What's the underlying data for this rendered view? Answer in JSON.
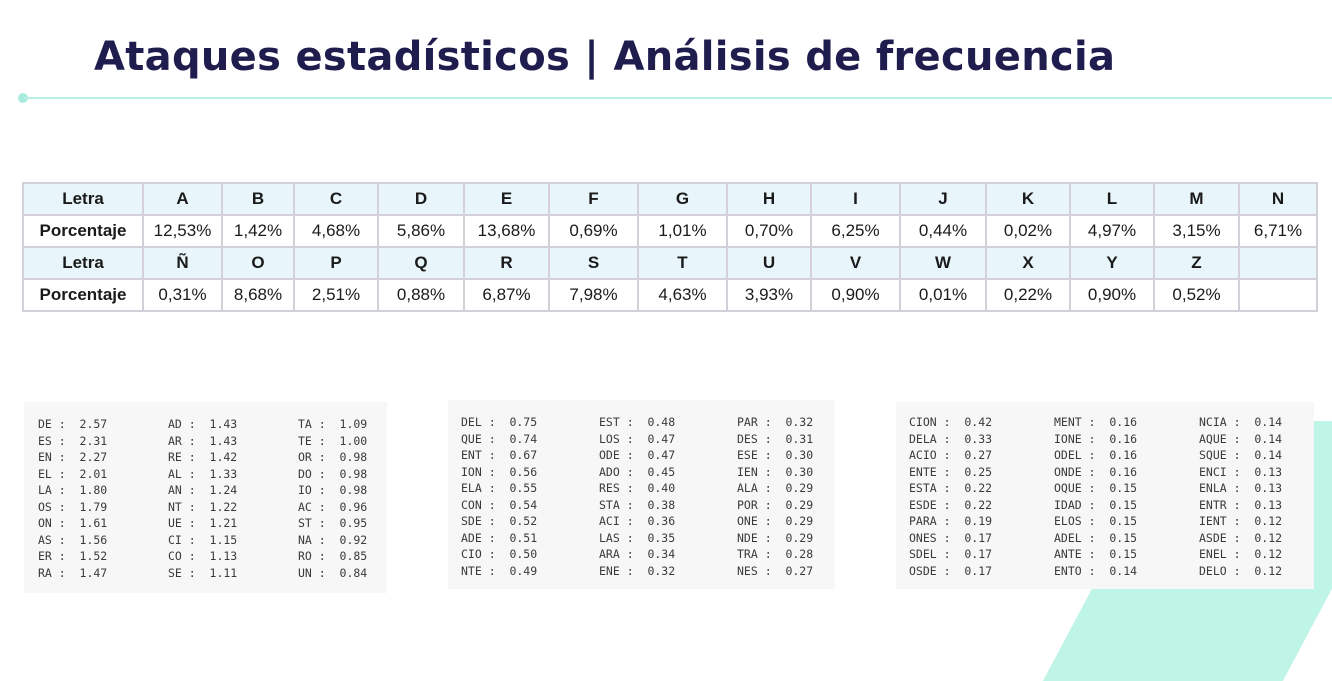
{
  "title": "Ataques estadísticos | Análisis de frecuencia",
  "table": {
    "label_letter": "Letra",
    "label_percent": "Porcentaje",
    "row1": {
      "letters": [
        "A",
        "B",
        "C",
        "D",
        "E",
        "F",
        "G",
        "H",
        "I",
        "J",
        "K",
        "L",
        "M",
        "N"
      ],
      "percents": [
        "12,53%",
        "1,42%",
        "4,68%",
        "5,86%",
        "13,68%",
        "0,69%",
        "1,01%",
        "0,70%",
        "6,25%",
        "0,44%",
        "0,02%",
        "4,97%",
        "3,15%",
        "6,71%"
      ]
    },
    "row2": {
      "letters": [
        "Ñ",
        "O",
        "P",
        "Q",
        "R",
        "S",
        "T",
        "U",
        "V",
        "W",
        "X",
        "Y",
        "Z",
        ""
      ],
      "percents": [
        "0,31%",
        "8,68%",
        "2,51%",
        "0,88%",
        "6,87%",
        "7,98%",
        "4,63%",
        "3,93%",
        "0,90%",
        "0,01%",
        "0,22%",
        "0,90%",
        "0,52%",
        ""
      ]
    }
  },
  "panels": [
    {
      "columns": [
        [
          "DE :  2.57",
          "ES :  2.31",
          "EN :  2.27",
          "EL :  2.01",
          "LA :  1.80",
          "OS :  1.79",
          "ON :  1.61",
          "AS :  1.56",
          "ER :  1.52",
          "RA :  1.47"
        ],
        [
          "AD :  1.43",
          "AR :  1.43",
          "RE :  1.42",
          "AL :  1.33",
          "AN :  1.24",
          "NT :  1.22",
          "UE :  1.21",
          "CI :  1.15",
          "CO :  1.13",
          "SE :  1.11"
        ],
        [
          "TA :  1.09",
          "TE :  1.00",
          "OR :  0.98",
          "DO :  0.98",
          "IO :  0.98",
          "AC :  0.96",
          "ST :  0.95",
          "NA :  0.92",
          "RO :  0.85",
          "UN :  0.84"
        ]
      ]
    },
    {
      "columns": [
        [
          "DEL :  0.75",
          "QUE :  0.74",
          "ENT :  0.67",
          "ION :  0.56",
          "ELA :  0.55",
          "CON :  0.54",
          "SDE :  0.52",
          "ADE :  0.51",
          "CIO :  0.50",
          "NTE :  0.49"
        ],
        [
          "EST :  0.48",
          "LOS :  0.47",
          "ODE :  0.47",
          "ADO :  0.45",
          "RES :  0.40",
          "STA :  0.38",
          "ACI :  0.36",
          "LAS :  0.35",
          "ARA :  0.34",
          "ENE :  0.32"
        ],
        [
          "PAR :  0.32",
          "DES :  0.31",
          "ESE :  0.30",
          "IEN :  0.30",
          "ALA :  0.29",
          "POR :  0.29",
          "ONE :  0.29",
          "NDE :  0.29",
          "TRA :  0.28",
          "NES :  0.27"
        ]
      ]
    },
    {
      "columns": [
        [
          "CION :  0.42",
          "DELA :  0.33",
          "ACIO :  0.27",
          "ENTE :  0.25",
          "ESTA :  0.22",
          "ESDE :  0.22",
          "PARA :  0.19",
          "ONES :  0.17",
          "SDEL :  0.17",
          "OSDE :  0.17"
        ],
        [
          "MENT :  0.16",
          "IONE :  0.16",
          "ODEL :  0.16",
          "ONDE :  0.16",
          "OQUE :  0.15",
          "IDAD :  0.15",
          "ELOS :  0.15",
          "ADEL :  0.15",
          "ANTE :  0.15",
          "ENTO :  0.14"
        ],
        [
          "NCIA :  0.14",
          "AQUE :  0.14",
          "SQUE :  0.14",
          "ENCI :  0.13",
          "ENLA :  0.13",
          "ENTR :  0.13",
          "IENT :  0.12",
          "ASDE :  0.12",
          "ENEL :  0.12",
          "DELO :  0.12"
        ]
      ]
    }
  ]
}
